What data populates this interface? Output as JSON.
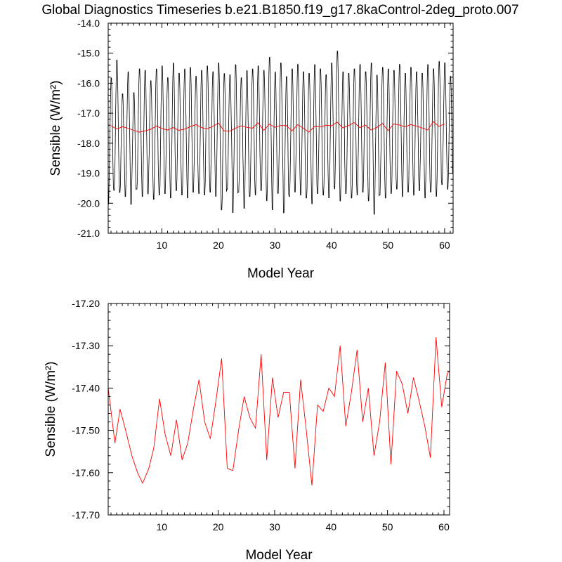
{
  "title": "Global Diagnostics Timeseries b.e21.B1850.f19_g17.8kaControl-2deg_proto.007",
  "colors": {
    "monthly": "#000000",
    "annual": "#ff0000"
  },
  "chart_data": [
    {
      "type": "line",
      "xlabel": "Model Year",
      "ylabel": "Sensible (W/m²)",
      "xlim": [
        0.5,
        61.5
      ],
      "ylim": [
        -21.0,
        -14.0
      ],
      "xticks": [
        10,
        20,
        30,
        40,
        50,
        60
      ],
      "yticks": [
        -21.0,
        -20.0,
        -19.0,
        -18.0,
        -17.0,
        -16.0,
        -15.0,
        -14.0
      ],
      "ytick_labels": [
        "-21.0",
        "-20.0",
        "-19.0",
        "-18.0",
        "-17.0",
        "-16.0",
        "-15.0",
        "-14.0"
      ],
      "monthly_series": {
        "note_pattern_per_year": "seasonal cycle",
        "min_by_year": [
          -20.1,
          -19.65,
          -19.7,
          -19.85,
          -20.1,
          -19.6,
          -19.85,
          -19.75,
          -19.95,
          -19.8,
          -19.75,
          -19.9,
          -19.65,
          -19.8,
          -19.9,
          -19.7,
          -19.75,
          -19.8,
          -19.7,
          -19.85,
          -20.3,
          -19.6,
          -20.4,
          -19.7,
          -20.25,
          -19.85,
          -19.8,
          -19.65,
          -20.0,
          -20.3,
          -19.75,
          -20.4,
          -19.85,
          -19.7,
          -19.8,
          -19.9,
          -20.1,
          -19.75,
          -19.8,
          -19.9,
          -19.6,
          -20.0,
          -19.75,
          -19.9,
          -19.8,
          -19.7,
          -20.0,
          -20.45,
          -19.8,
          -19.9,
          -19.75,
          -19.6,
          -19.85,
          -19.7,
          -19.8,
          -19.65,
          -19.9,
          -19.7,
          -19.85,
          -19.45,
          -19.6
        ],
        "max_by_year": [
          -15.75,
          -15.15,
          -16.3,
          -15.55,
          -16.25,
          -15.45,
          -15.5,
          -15.85,
          -15.45,
          -15.35,
          -15.75,
          -15.25,
          -15.6,
          -15.45,
          -15.4,
          -15.7,
          -15.5,
          -15.35,
          -15.55,
          -15.25,
          -15.6,
          -15.65,
          -15.3,
          -15.75,
          -15.5,
          -15.45,
          -15.35,
          -15.5,
          -15.05,
          -15.55,
          -15.25,
          -15.7,
          -15.45,
          -15.3,
          -15.55,
          -15.6,
          -15.3,
          -15.45,
          -15.65,
          -15.25,
          -14.85,
          -15.55,
          -15.6,
          -15.45,
          -15.3,
          -15.55,
          -15.25,
          -15.65,
          -15.4,
          -15.45,
          -15.5,
          -15.3,
          -15.6,
          -15.4,
          -15.55,
          -15.6,
          -15.3,
          -15.45,
          -15.2,
          -15.25,
          -15.7
        ]
      },
      "series": [
        {
          "values": [
            -17.41,
            -17.53,
            -17.45,
            -17.5,
            -17.57,
            -17.63,
            -17.59,
            -17.54,
            -17.43,
            -17.51,
            -17.56,
            -17.48,
            -17.57,
            -17.53,
            -17.45,
            -17.38,
            -17.48,
            -17.52,
            -17.44,
            -17.33,
            -17.59,
            -17.6,
            -17.5,
            -17.42,
            -17.47,
            -17.5,
            -17.32,
            -17.57,
            -17.37,
            -17.47,
            -17.41,
            -17.41,
            -17.59,
            -17.38,
            -17.5,
            -17.63,
            -17.44,
            -17.46,
            -17.4,
            -17.42,
            -17.3,
            -17.49,
            -17.41,
            -17.31,
            -17.48,
            -17.4,
            -17.56,
            -17.48,
            -17.34,
            -17.58,
            -17.36,
            -17.39,
            -17.46,
            -17.38,
            -17.43,
            -17.49,
            -17.56,
            -17.28,
            -17.44,
            -17.36
          ]
        }
      ]
    },
    {
      "type": "line",
      "xlabel": "Model Year",
      "ylabel": "Sensible (W/m²)",
      "xlim": [
        0.5,
        61.0
      ],
      "ylim": [
        -17.7,
        -17.2
      ],
      "xticks": [
        10,
        20,
        30,
        40,
        50,
        60
      ],
      "yticks": [
        -17.7,
        -17.6,
        -17.5,
        -17.4,
        -17.3,
        -17.2
      ],
      "ytick_labels": [
        "-17.70",
        "-17.60",
        "-17.50",
        "-17.40",
        "-17.30",
        "-17.20"
      ],
      "series": [
        {
          "x": [
            0.5,
            1.7,
            2.6,
            3.6,
            4.7,
            5.7,
            6.6,
            7.7,
            8.6,
            9.6,
            10.6,
            11.6,
            12.6,
            13.6,
            14.6,
            15.6,
            16.6,
            17.6,
            18.6,
            19.6,
            20.6,
            21.6,
            22.6,
            23.6,
            24.6,
            25.6,
            26.6,
            27.6,
            28.6,
            29.6,
            30.6,
            31.6,
            32.6,
            33.6,
            34.6,
            35.6,
            36.6,
            37.6,
            38.6,
            39.6,
            40.6,
            41.6,
            42.6,
            43.6,
            44.6,
            45.6,
            46.6,
            47.6,
            48.6,
            49.6,
            50.6,
            51.6,
            52.6,
            53.6,
            54.6,
            55.6,
            56.6,
            57.6,
            58.6,
            59.6,
            60.6,
            61.0
          ],
          "values": [
            -17.4,
            -17.53,
            -17.45,
            -17.5,
            -17.56,
            -17.6,
            -17.625,
            -17.59,
            -17.54,
            -17.425,
            -17.51,
            -17.56,
            -17.475,
            -17.57,
            -17.53,
            -17.45,
            -17.38,
            -17.48,
            -17.52,
            -17.43,
            -17.33,
            -17.59,
            -17.595,
            -17.5,
            -17.42,
            -17.47,
            -17.495,
            -17.32,
            -17.57,
            -17.375,
            -17.47,
            -17.41,
            -17.41,
            -17.59,
            -17.38,
            -17.5,
            -17.63,
            -17.44,
            -17.455,
            -17.4,
            -17.42,
            -17.3,
            -17.49,
            -17.41,
            -17.31,
            -17.48,
            -17.4,
            -17.56,
            -17.48,
            -17.34,
            -17.58,
            -17.36,
            -17.39,
            -17.46,
            -17.375,
            -17.43,
            -17.49,
            -17.565,
            -17.28,
            -17.445,
            -17.365,
            -17.36
          ]
        }
      ]
    }
  ]
}
